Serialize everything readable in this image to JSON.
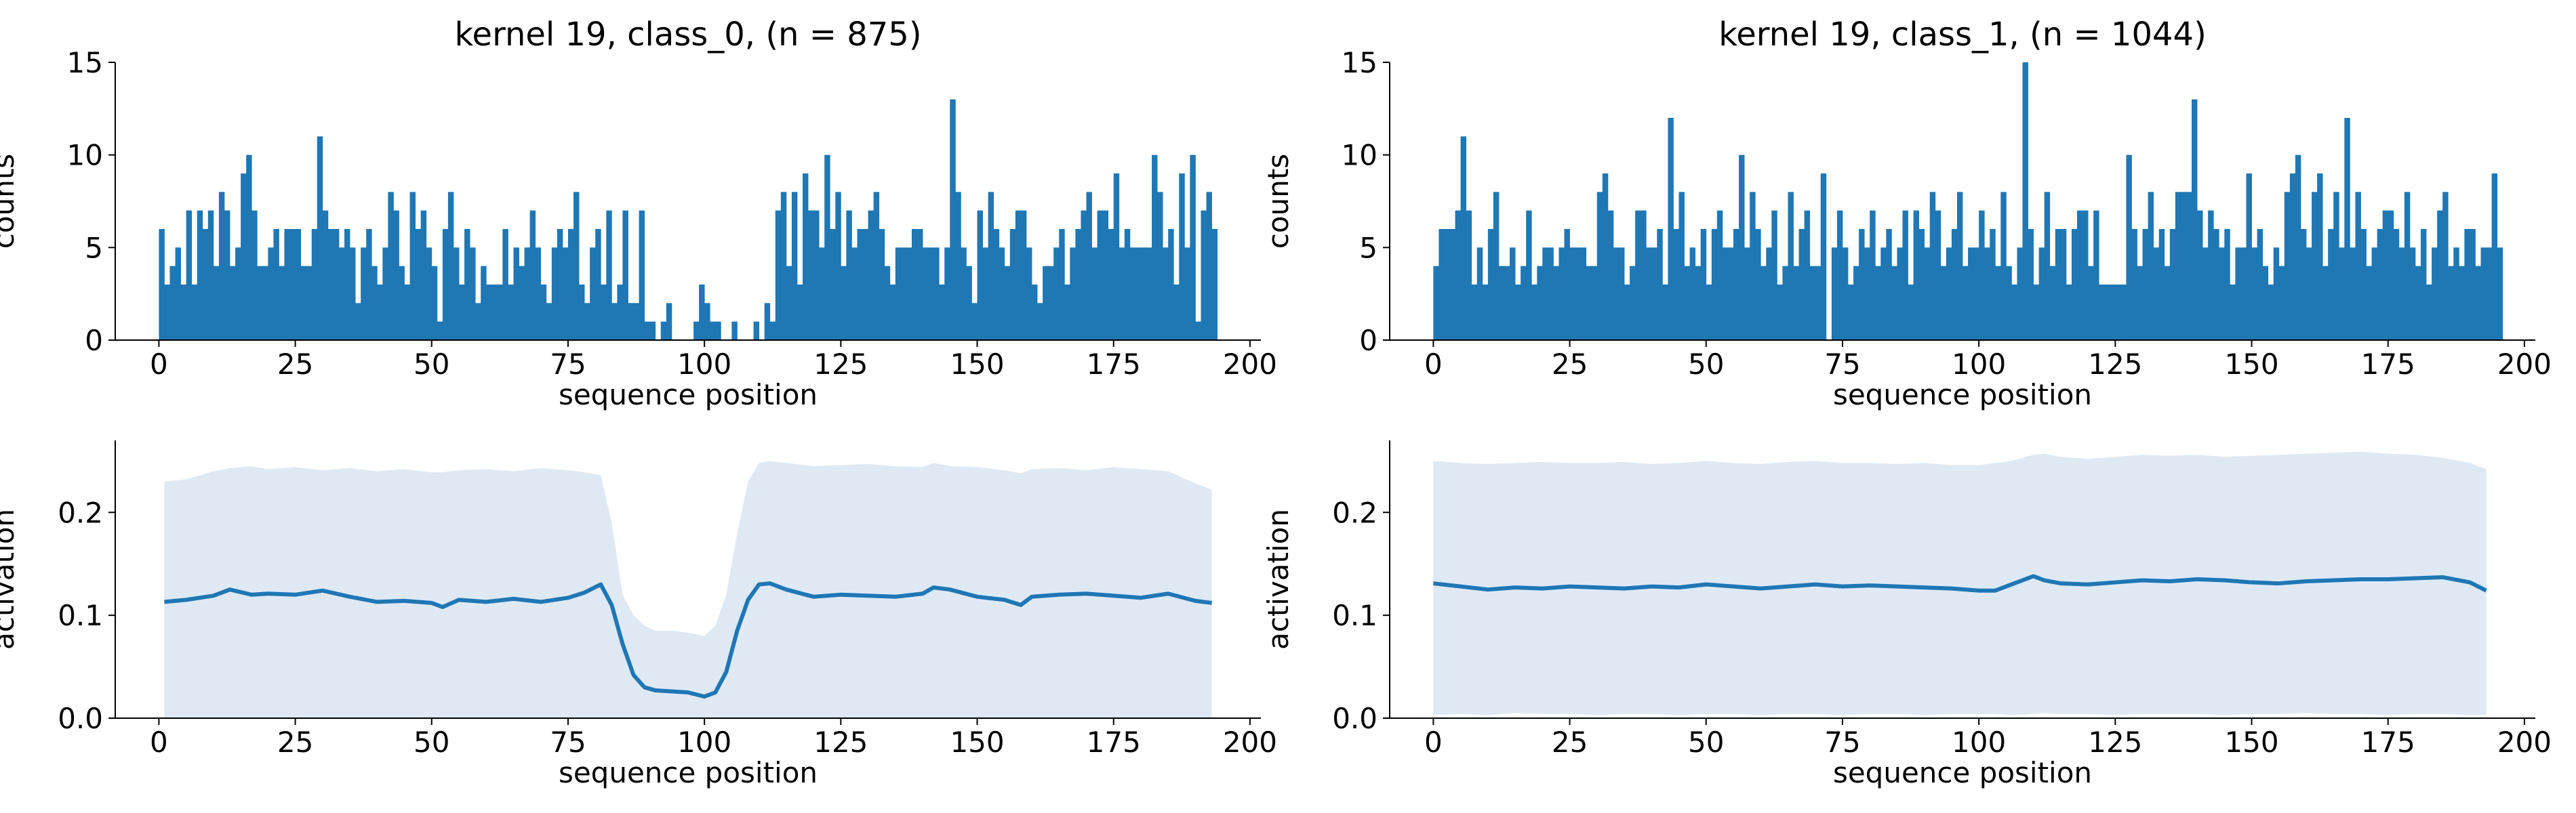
{
  "colors": {
    "series": "#1f77b4",
    "band": "#dfe9f4",
    "axes": "#000000"
  },
  "chart_data": [
    {
      "type": "bar",
      "title": "kernel 19, class_0, (n = 875)",
      "xlabel": "sequence position",
      "ylabel": "counts",
      "xlim": [
        -8,
        202
      ],
      "ylim": [
        0,
        15
      ],
      "xticks": [
        "0",
        "25",
        "50",
        "75",
        "100",
        "125",
        "150",
        "175",
        "200"
      ],
      "yticks": [
        "0",
        "5",
        "10",
        "15"
      ],
      "x_start": 0,
      "values": [
        6,
        3,
        4,
        5,
        3,
        7,
        3,
        7,
        6,
        7,
        4,
        8,
        7,
        4,
        5,
        9,
        10,
        7,
        4,
        4,
        5,
        6,
        4,
        6,
        6,
        6,
        4,
        4,
        6,
        11,
        7,
        6,
        6,
        5,
        6,
        5,
        2,
        5,
        6,
        4,
        3,
        5,
        8,
        7,
        4,
        3,
        8,
        6,
        7,
        5,
        4,
        1,
        6,
        8,
        5,
        3,
        6,
        5,
        2,
        4,
        3,
        3,
        3,
        6,
        3,
        5,
        4,
        5,
        7,
        5,
        3,
        2,
        5,
        6,
        5,
        6,
        8,
        3,
        2,
        5,
        6,
        3,
        7,
        2,
        3,
        7,
        2,
        2,
        7,
        1,
        1,
        0,
        1,
        2,
        0,
        0,
        0,
        0,
        1,
        3,
        2,
        1,
        1,
        0,
        0,
        1,
        0,
        0,
        0,
        1,
        0,
        2,
        1,
        7,
        8,
        4,
        8,
        3,
        9,
        7,
        7,
        5,
        10,
        6,
        8,
        4,
        7,
        5,
        6,
        6,
        7,
        8,
        6,
        4,
        3,
        5,
        5,
        5,
        6,
        6,
        5,
        5,
        5,
        3,
        5,
        13,
        8,
        5,
        4,
        2,
        7,
        5,
        8,
        6,
        5,
        4,
        6,
        7,
        7,
        5,
        3,
        2,
        4,
        4,
        5,
        6,
        3,
        5,
        6,
        7,
        8,
        5,
        7,
        7,
        6,
        9,
        5,
        6,
        5,
        5,
        5,
        5,
        10,
        8,
        5,
        6,
        3,
        9,
        5,
        10,
        1,
        7,
        8,
        6
      ]
    },
    {
      "type": "bar",
      "title": "kernel 19, class_1, (n = 1044)",
      "xlabel": "sequence position",
      "ylabel": "counts",
      "xlim": [
        -8,
        202
      ],
      "ylim": [
        0,
        15
      ],
      "xticks": [
        "0",
        "25",
        "50",
        "75",
        "100",
        "125",
        "150",
        "175",
        "200"
      ],
      "yticks": [
        "0",
        "5",
        "10",
        "15"
      ],
      "x_start": 0,
      "values": [
        4,
        6,
        6,
        6,
        7,
        11,
        7,
        3,
        5,
        3,
        6,
        8,
        4,
        4,
        5,
        3,
        4,
        7,
        3,
        4,
        5,
        5,
        4,
        5,
        6,
        5,
        5,
        5,
        4,
        4,
        8,
        9,
        7,
        5,
        5,
        3,
        4,
        7,
        7,
        5,
        5,
        6,
        3,
        12,
        6,
        8,
        4,
        5,
        4,
        6,
        3,
        6,
        7,
        5,
        5,
        6,
        10,
        5,
        8,
        6,
        4,
        5,
        7,
        3,
        4,
        8,
        4,
        6,
        7,
        4,
        4,
        9,
        0,
        5,
        7,
        5,
        3,
        4,
        6,
        5,
        7,
        4,
        5,
        6,
        4,
        5,
        7,
        3,
        7,
        6,
        5,
        8,
        7,
        4,
        5,
        6,
        8,
        4,
        5,
        5,
        7,
        5,
        6,
        4,
        8,
        4,
        3,
        5,
        15,
        6,
        3,
        5,
        8,
        4,
        6,
        6,
        3,
        6,
        7,
        7,
        4,
        7,
        3,
        3,
        3,
        3,
        3,
        10,
        6,
        4,
        6,
        8,
        5,
        6,
        4,
        6,
        8,
        8,
        8,
        13,
        7,
        5,
        7,
        6,
        5,
        6,
        3,
        5,
        5,
        9,
        5,
        6,
        4,
        3,
        5,
        4,
        8,
        9,
        10,
        6,
        5,
        8,
        9,
        4,
        6,
        8,
        5,
        12,
        5,
        8,
        6,
        4,
        5,
        6,
        7,
        7,
        6,
        5,
        8,
        5,
        4,
        6,
        3,
        5,
        7,
        8,
        4,
        5,
        4,
        6,
        6,
        4,
        5,
        5,
        9,
        5
      ]
    },
    {
      "type": "line",
      "xlabel": "sequence position",
      "ylabel": "activation",
      "xlim": [
        -8,
        202
      ],
      "ylim": [
        0,
        0.27
      ],
      "xticks": [
        "0",
        "25",
        "50",
        "75",
        "100",
        "125",
        "150",
        "175",
        "200"
      ],
      "yticks": [
        "0.0",
        "0.1",
        "0.2"
      ],
      "series": [
        {
          "x": [
            1,
            5,
            10,
            13,
            17,
            20,
            25,
            30,
            35,
            40,
            45,
            50,
            52,
            55,
            60,
            65,
            70,
            75,
            78,
            81,
            83,
            85,
            87,
            89,
            91,
            94,
            97,
            100,
            102,
            104,
            106,
            108,
            110,
            112,
            115,
            120,
            125,
            130,
            135,
            140,
            142,
            145,
            150,
            155,
            158,
            160,
            165,
            170,
            175,
            180,
            185,
            190,
            193
          ],
          "y": [
            0.113,
            0.115,
            0.119,
            0.125,
            0.12,
            0.121,
            0.12,
            0.124,
            0.118,
            0.113,
            0.114,
            0.112,
            0.108,
            0.115,
            0.113,
            0.116,
            0.113,
            0.117,
            0.122,
            0.13,
            0.11,
            0.072,
            0.042,
            0.03,
            0.027,
            0.026,
            0.025,
            0.021,
            0.025,
            0.045,
            0.085,
            0.115,
            0.13,
            0.131,
            0.125,
            0.118,
            0.12,
            0.119,
            0.118,
            0.121,
            0.127,
            0.125,
            0.118,
            0.115,
            0.11,
            0.118,
            0.12,
            0.121,
            0.119,
            0.117,
            0.121,
            0.114,
            0.112
          ],
          "band_upper": [
            0.23,
            0.232,
            0.24,
            0.243,
            0.245,
            0.242,
            0.244,
            0.241,
            0.243,
            0.24,
            0.242,
            0.239,
            0.239,
            0.241,
            0.242,
            0.24,
            0.243,
            0.241,
            0.239,
            0.236,
            0.19,
            0.12,
            0.1,
            0.09,
            0.085,
            0.085,
            0.083,
            0.08,
            0.09,
            0.12,
            0.18,
            0.23,
            0.248,
            0.25,
            0.248,
            0.245,
            0.246,
            0.247,
            0.245,
            0.244,
            0.248,
            0.245,
            0.244,
            0.241,
            0.238,
            0.242,
            0.243,
            0.241,
            0.244,
            0.242,
            0.24,
            0.228,
            0.222
          ],
          "band_lower": [
            0,
            0,
            0,
            0,
            0,
            0,
            0,
            0,
            0,
            0,
            0,
            0,
            0,
            0,
            0,
            0,
            0,
            0,
            0,
            0,
            0,
            0,
            0,
            0,
            0,
            0,
            0,
            0,
            0,
            0,
            0,
            0,
            0,
            0,
            0,
            0,
            0,
            0,
            0,
            0,
            0,
            0,
            0,
            0,
            0,
            0,
            0,
            0,
            0,
            0,
            0,
            0,
            0
          ]
        }
      ]
    },
    {
      "type": "line",
      "xlabel": "sequence position",
      "ylabel": "activation",
      "xlim": [
        -8,
        202
      ],
      "ylim": [
        0,
        0.27
      ],
      "xticks": [
        "0",
        "25",
        "50",
        "75",
        "100",
        "125",
        "150",
        "175",
        "200"
      ],
      "yticks": [
        "0.0",
        "0.1",
        "0.2"
      ],
      "series": [
        {
          "x": [
            0,
            5,
            10,
            15,
            20,
            25,
            30,
            35,
            40,
            45,
            50,
            55,
            60,
            65,
            70,
            75,
            80,
            85,
            90,
            95,
            100,
            103,
            106,
            110,
            112,
            115,
            120,
            125,
            130,
            135,
            140,
            145,
            150,
            155,
            160,
            165,
            170,
            175,
            180,
            185,
            190,
            193
          ],
          "y": [
            0.131,
            0.128,
            0.125,
            0.127,
            0.126,
            0.128,
            0.127,
            0.126,
            0.128,
            0.127,
            0.13,
            0.128,
            0.126,
            0.128,
            0.13,
            0.128,
            0.129,
            0.128,
            0.127,
            0.126,
            0.124,
            0.124,
            0.13,
            0.138,
            0.134,
            0.131,
            0.13,
            0.132,
            0.134,
            0.133,
            0.135,
            0.134,
            0.132,
            0.131,
            0.133,
            0.134,
            0.135,
            0.135,
            0.136,
            0.137,
            0.132,
            0.124
          ],
          "band_upper": [
            0.25,
            0.248,
            0.247,
            0.248,
            0.249,
            0.248,
            0.248,
            0.249,
            0.247,
            0.248,
            0.25,
            0.248,
            0.247,
            0.249,
            0.25,
            0.248,
            0.248,
            0.247,
            0.248,
            0.246,
            0.246,
            0.248,
            0.25,
            0.256,
            0.257,
            0.254,
            0.252,
            0.254,
            0.256,
            0.255,
            0.256,
            0.254,
            0.255,
            0.256,
            0.257,
            0.258,
            0.259,
            0.257,
            0.256,
            0.253,
            0.248,
            0.242
          ],
          "band_lower": [
            0.003,
            0.004,
            0.003,
            0.005,
            0.004,
            0.004,
            0.003,
            0.004,
            0.004,
            0.003,
            0.004,
            0.004,
            0.003,
            0.004,
            0.004,
            0.003,
            0.004,
            0.004,
            0.003,
            0.004,
            0.004,
            0.004,
            0.003,
            0.004,
            0.005,
            0.004,
            0.004,
            0.003,
            0.004,
            0.004,
            0.004,
            0.003,
            0.004,
            0.004,
            0.005,
            0.004,
            0.004,
            0.003,
            0.004,
            0.004,
            0.003,
            0.003
          ]
        }
      ]
    }
  ]
}
